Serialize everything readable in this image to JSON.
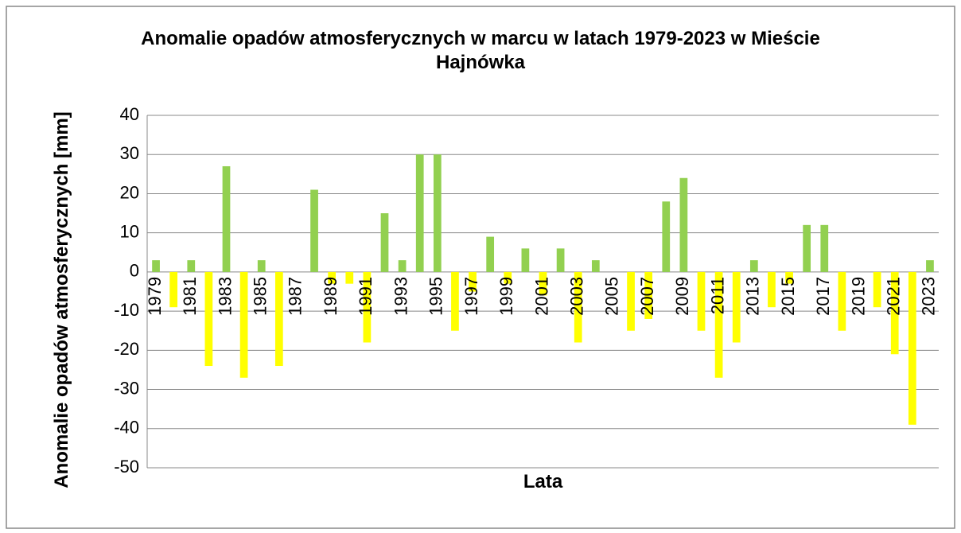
{
  "chart_data": {
    "type": "bar",
    "title": "Anomalie opadów atmosferycznych w marcu w latach 1979-2023 w Mieście Hajnówka",
    "x_label": "Lata",
    "y_label": "Anomalie opadów atmosferycznych [mm]",
    "categories": [
      "1979",
      null,
      "1981",
      null,
      "1983",
      null,
      "1985",
      null,
      "1987",
      null,
      "1989",
      null,
      "1991",
      null,
      "1993",
      null,
      "1995",
      null,
      "1997",
      null,
      "1999",
      null,
      "2001",
      null,
      "2003",
      null,
      "2005",
      null,
      "2007",
      null,
      "2009",
      null,
      "2011",
      null,
      "2013",
      null,
      "2015",
      null,
      "2017",
      null,
      "2019",
      null,
      "2021",
      null,
      "2023"
    ],
    "values": [
      3,
      -9,
      3,
      -24,
      27,
      -27,
      3,
      -24,
      0,
      21,
      -3,
      -3,
      -18,
      15,
      3,
      30,
      30,
      -15,
      -5,
      9,
      -3,
      6,
      -6,
      6,
      -18,
      3,
      0,
      -15,
      -12,
      18,
      24,
      -15,
      -27,
      -18,
      3,
      -9,
      -3,
      12,
      12,
      -15,
      0,
      -9,
      -21,
      -39,
      3
    ],
    "positive_color": "#92d050",
    "negative_color": "#ffff00",
    "ylim": [
      -50,
      40
    ],
    "yticks": [
      -50,
      -40,
      -30,
      -20,
      -10,
      0,
      10,
      20,
      30,
      40
    ],
    "grid": true
  }
}
